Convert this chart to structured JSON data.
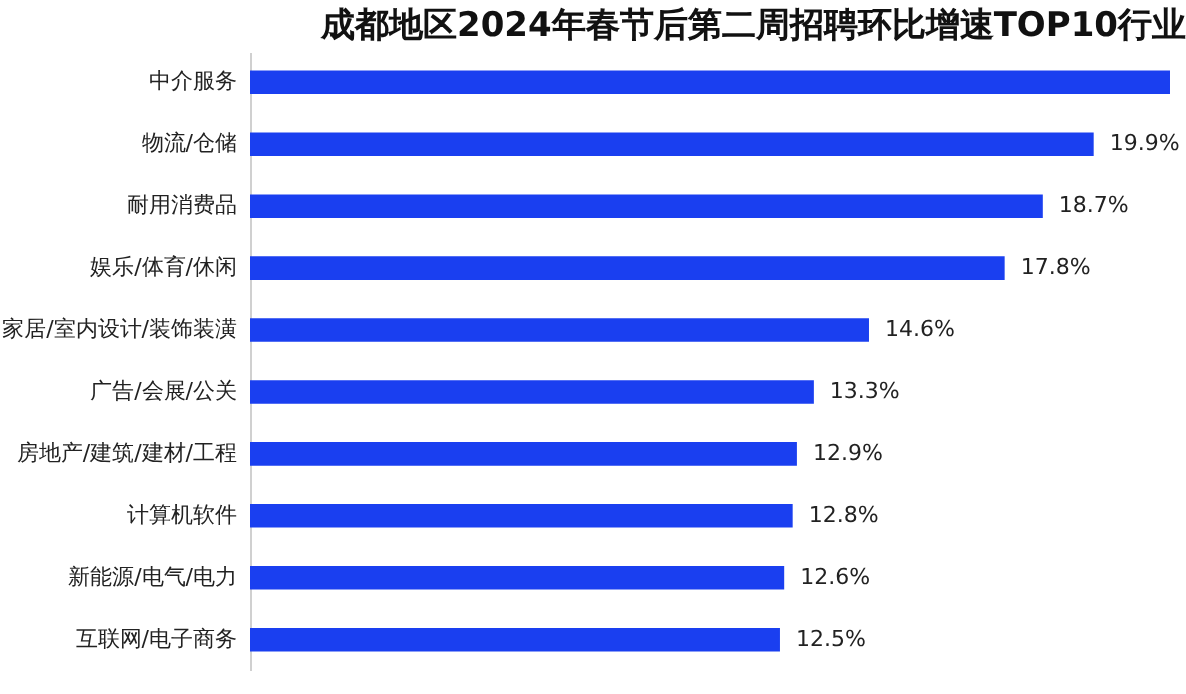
{
  "chart_data": {
    "type": "bar",
    "orientation": "horizontal",
    "title": "成都地区2024年春节后第二周招聘环比增速TOP10行业",
    "categories": [
      "中介服务",
      "物流/仓储",
      "耐用消费品",
      "娱乐/体育/休闲",
      "家居/室内设计/装饰装潢",
      "广告/会展/公关",
      "房地产/建筑/建材/工程",
      "计算机软件",
      "新能源/电气/电力",
      "互联网/电子商务"
    ],
    "values": [
      21.7,
      19.9,
      18.7,
      17.8,
      14.6,
      13.3,
      12.9,
      12.8,
      12.6,
      12.5
    ],
    "value_labels": [
      null,
      "19.9%",
      "18.7%",
      "17.8%",
      "14.6%",
      "13.3%",
      "12.9%",
      "12.8%",
      "12.6%",
      "12.5%"
    ],
    "color": "#1a3ff0",
    "xlim": [
      0,
      21.7
    ],
    "tick_labels": "y",
    "grid": false
  }
}
